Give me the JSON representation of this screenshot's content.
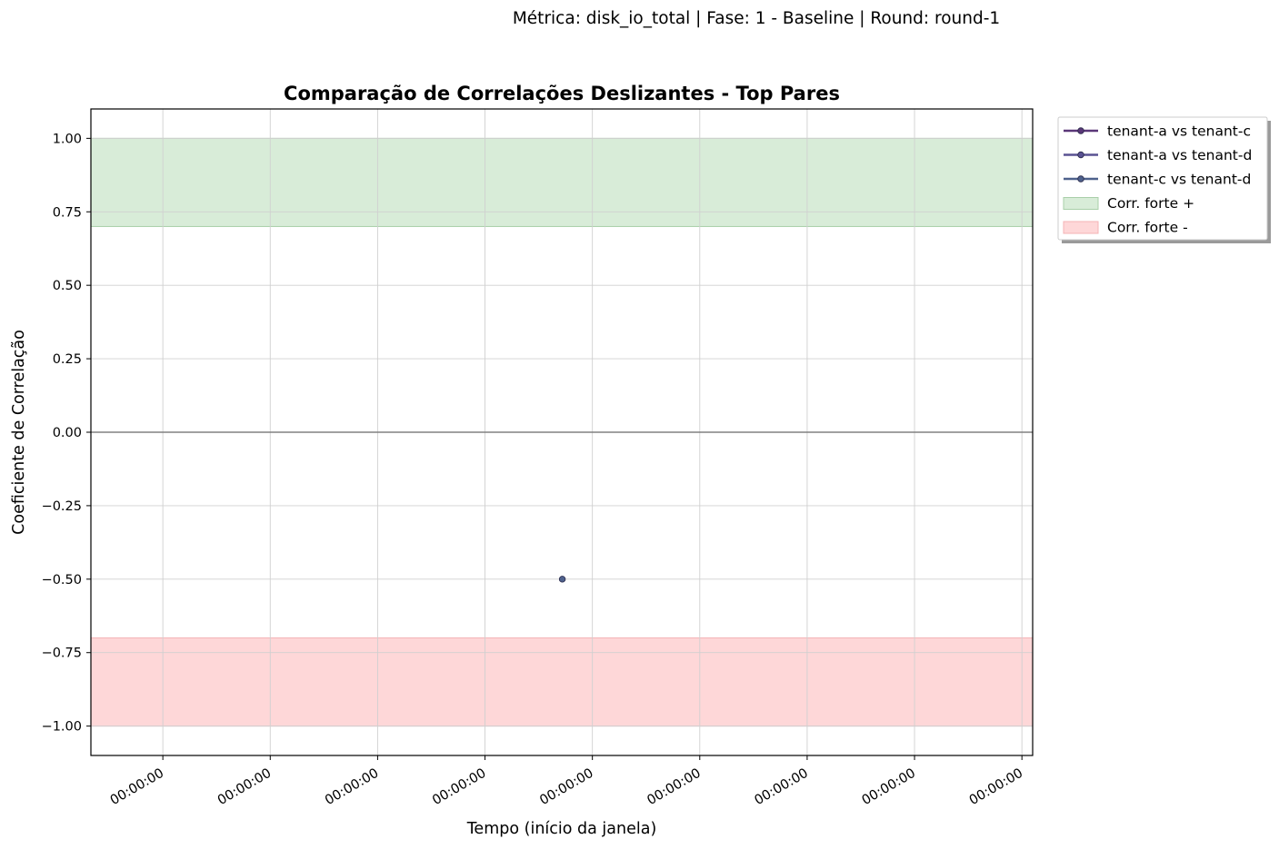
{
  "suptitle": "Métrica: disk_io_total | Fase: 1 - Baseline | Round: round-1",
  "colors": {
    "background": "#ffffff",
    "grid": "#d0d0d0",
    "zero_line": "#808080",
    "strong_positive_band": "#d8ecd8",
    "strong_negative_band": "#fed7d8",
    "series": [
      "#5a3778",
      "#5a5292",
      "#4e618c"
    ]
  },
  "chart_data": {
    "type": "line",
    "title": "Comparação de Correlações Deslizantes - Top Pares",
    "xlabel": "Tempo (início da janela)",
    "ylabel": "Coeficiente de Correlação",
    "ylim": [
      -1.1,
      1.1
    ],
    "y_ticks": [
      1.0,
      0.75,
      0.5,
      0.25,
      0.0,
      -0.25,
      -0.5,
      -0.75,
      -1.0
    ],
    "y_tick_labels": [
      "1.00",
      "0.75",
      "0.50",
      "0.25",
      "0.00",
      "−0.25",
      "−0.50",
      "−0.75",
      "−1.00"
    ],
    "x_ticks": [
      0,
      1,
      2,
      3,
      4,
      5,
      6,
      7,
      8
    ],
    "x_tick_labels": [
      "00:00:00",
      "00:00:00",
      "00:00:00",
      "00:00:00",
      "00:00:00",
      "00:00:00",
      "00:00:00",
      "00:00:00",
      "00:00:00"
    ],
    "xlim": [
      -0.67,
      8.1
    ],
    "grid": true,
    "legend_position": "outside-top-right",
    "series": [
      {
        "name": "tenant-a vs tenant-c",
        "points": []
      },
      {
        "name": "tenant-a vs tenant-d",
        "points": []
      },
      {
        "name": "tenant-c vs tenant-d",
        "points": [
          {
            "x": 3.72,
            "y": -0.5
          }
        ]
      }
    ],
    "bands": [
      {
        "name": "Corr. forte +",
        "from": 0.7,
        "to": 1.0
      },
      {
        "name": "Corr. forte -",
        "from": -1.0,
        "to": -0.7
      }
    ],
    "reference_line": {
      "y": 0.0
    }
  }
}
